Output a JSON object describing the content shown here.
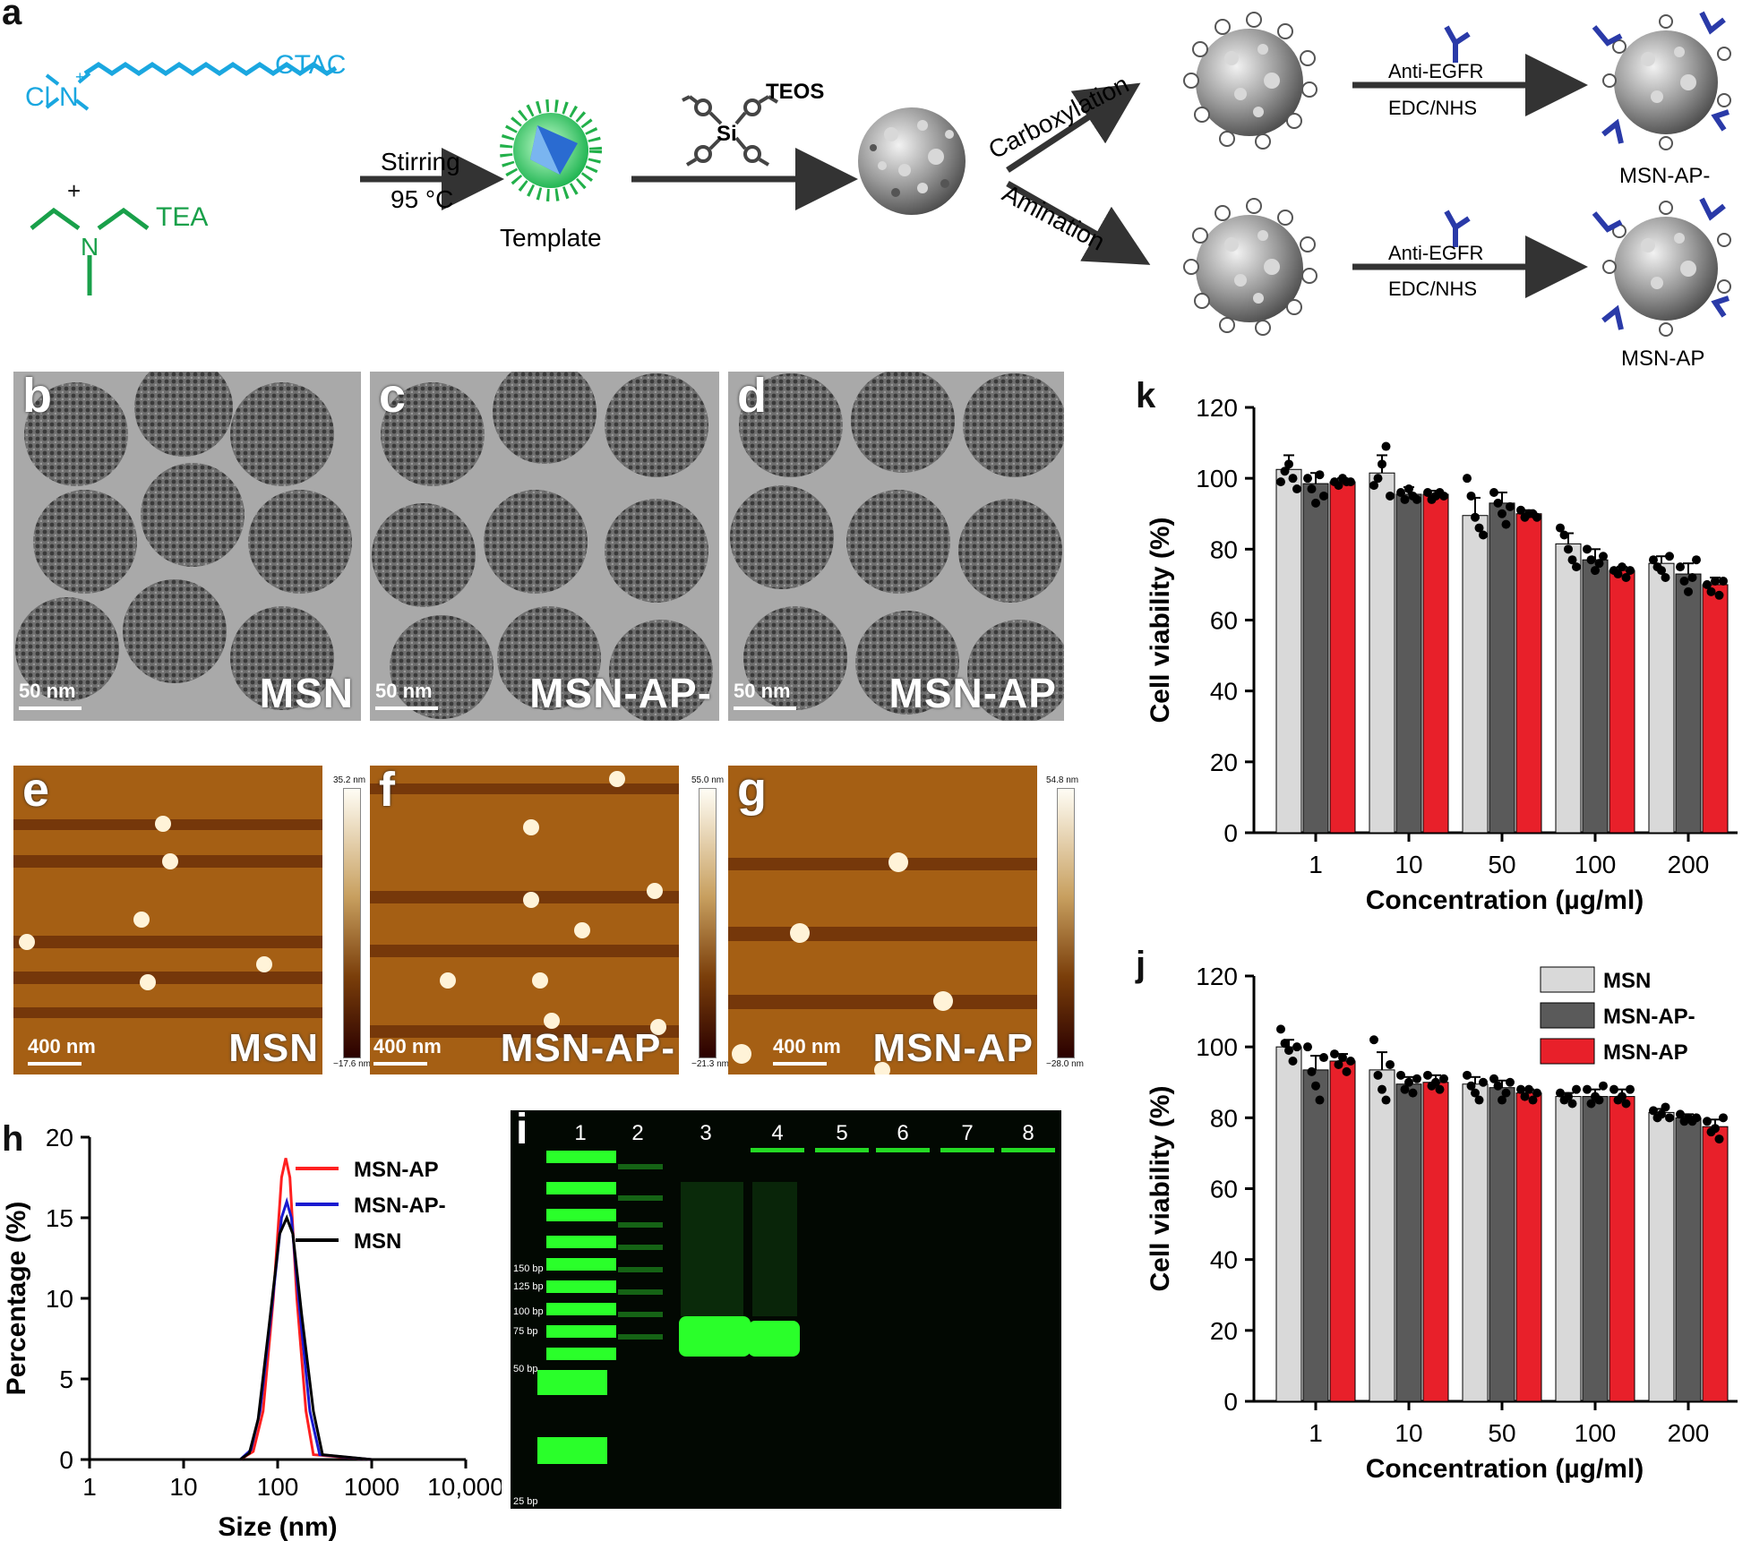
{
  "panel_labels": {
    "a": "a",
    "b": "b",
    "c": "c",
    "d": "d",
    "e": "e",
    "f": "f",
    "g": "g",
    "h": "h",
    "i": "i",
    "j": "j",
    "k": "k"
  },
  "scheme": {
    "ctac": "CTAC",
    "cl": "Cl",
    "n_plus": "N",
    "plus_sign": "+",
    "tea": "TEA",
    "n": "N",
    "stirring": "Stirring",
    "temp": "95 °C",
    "template": "Template",
    "teos": "TEOS",
    "si": "Si",
    "carboxylation": "Carboxylation",
    "amination": "Amination",
    "anti_egfr": "Anti-EGFR",
    "edc_nhs": "EDC/NHS",
    "product_top": "MSN-AP-",
    "product_bottom": "MSN-AP"
  },
  "tem": [
    {
      "label": "MSN",
      "scale": "50 nm"
    },
    {
      "label": "MSN-AP-",
      "scale": "50 nm"
    },
    {
      "label": "MSN-AP",
      "scale": "50 nm"
    }
  ],
  "afm": [
    {
      "label": "MSN",
      "scale": "400 nm",
      "cbar_top": "35.2 nm",
      "cbar_bottom": "−17.6 nm"
    },
    {
      "label": "MSN-AP-",
      "scale": "400 nm",
      "cbar_top": "55.0 nm",
      "cbar_bottom": "−21.3 nm"
    },
    {
      "label": "MSN-AP",
      "scale": "400 nm",
      "cbar_top": "54.8 nm",
      "cbar_bottom": "−28.0 nm"
    }
  ],
  "gel": {
    "lanes": [
      "1",
      "2",
      "3",
      "4",
      "5",
      "6",
      "7",
      "8"
    ],
    "ladder": [
      "150 bp",
      "125 bp",
      "100 bp",
      "75 bp",
      "50 bp",
      "25 bp"
    ],
    "band_color": "#2aff2a"
  },
  "colors": {
    "msn": "#d9d9d9",
    "msn_ap_minus": "#5a5a5a",
    "msn_ap": "#e8202a"
  },
  "chart_data": [
    {
      "panel": "h",
      "type": "line",
      "xlabel": "Size (nm)",
      "ylabel": "Percentage (%)",
      "xscale": "log",
      "xlim": [
        1,
        10000
      ],
      "ylim": [
        0,
        20
      ],
      "xticks": [
        "1",
        "10",
        "100",
        "1000",
        "10,000"
      ],
      "yticks": [
        "0",
        "5",
        "10",
        "15",
        "20"
      ],
      "legend": "top-right",
      "series": [
        {
          "name": "MSN-AP",
          "color": "#ff2020",
          "x": [
            1,
            40,
            55,
            70,
            90,
            110,
            122,
            135,
            160,
            200,
            240,
            1000,
            10000
          ],
          "y": [
            0,
            0,
            0.5,
            3,
            10,
            17.5,
            18.7,
            17.5,
            10,
            3,
            0.3,
            0,
            0
          ]
        },
        {
          "name": "MSN-AP-",
          "color": "#1a1ad0",
          "x": [
            1,
            40,
            52,
            65,
            85,
            110,
            125,
            140,
            170,
            220,
            280,
            1000,
            10000
          ],
          "y": [
            0,
            0,
            0.6,
            3,
            9,
            15,
            16,
            15,
            9.5,
            3,
            0.3,
            0,
            0
          ]
        },
        {
          "name": "MSN",
          "color": "#000000",
          "x": [
            1,
            40,
            50,
            62,
            80,
            105,
            125,
            145,
            180,
            240,
            300,
            1000,
            10000
          ],
          "y": [
            0,
            0,
            0.4,
            2.5,
            8,
            14,
            15,
            14,
            9,
            3,
            0.3,
            0,
            0
          ]
        }
      ]
    },
    {
      "panel": "k",
      "type": "bar",
      "xlabel": "Concentration (µg/ml)",
      "ylabel": "Cell viability (%)",
      "ylim": [
        0,
        120
      ],
      "yticks": [
        "0",
        "20",
        "40",
        "60",
        "80",
        "100",
        "120"
      ],
      "categories": [
        "1",
        "10",
        "50",
        "100",
        "200"
      ],
      "series": [
        {
          "name": "MSN",
          "color": "#d9d9d9",
          "values": [
            102.5,
            101.5,
            89.5,
            81.5,
            76
          ],
          "errors": [
            4,
            5,
            5,
            3,
            2
          ],
          "points": [
            [
              99,
              102,
              104,
              100,
              97
            ],
            [
              98,
              100,
              104,
              109,
              95
            ],
            [
              100,
              95,
              89,
              86,
              84
            ],
            [
              86,
              84,
              80,
              77,
              75
            ],
            [
              77,
              75,
              74,
              72,
              78
            ]
          ]
        },
        {
          "name": "MSN-AP-",
          "color": "#5a5a5a",
          "values": [
            98.5,
            95.5,
            93,
            77,
            73
          ],
          "errors": [
            3,
            2,
            3,
            3,
            3
          ],
          "points": [
            [
              100,
              97,
              93,
              101,
              95
            ],
            [
              96,
              94,
              97,
              95,
              94
            ],
            [
              96,
              93,
              90,
              87,
              92
            ],
            [
              80,
              77,
              74,
              76,
              78
            ],
            [
              75,
              71,
              68,
              72,
              77
            ]
          ]
        },
        {
          "name": "MSN-AP",
          "color": "#e8202a",
          "values": [
            99,
            95.5,
            90,
            74,
            70
          ],
          "errors": [
            1,
            1,
            1,
            1,
            2
          ],
          "points": [
            [
              99,
              98,
              100,
              99,
              99
            ],
            [
              96,
              94,
              95,
              96,
              95
            ],
            [
              91,
              89,
              90,
              90,
              89
            ],
            [
              74,
              73,
              75,
              72,
              74
            ],
            [
              70,
              68,
              71,
              67,
              71
            ]
          ]
        }
      ]
    },
    {
      "panel": "j",
      "type": "bar",
      "xlabel": "Concentration (µg/ml)",
      "ylabel": "Cell viability (%)",
      "ylim": [
        0,
        120
      ],
      "yticks": [
        "0",
        "20",
        "40",
        "60",
        "80",
        "100",
        "120"
      ],
      "categories": [
        "1",
        "10",
        "50",
        "100",
        "200"
      ],
      "legend": "top-right",
      "series": [
        {
          "name": "MSN",
          "color": "#d9d9d9",
          "values": [
            100,
            93.5,
            89.5,
            86,
            81.5
          ],
          "errors": [
            2,
            5,
            2,
            1,
            1
          ],
          "points": [
            [
              105,
              101,
              99,
              96,
              100
            ],
            [
              102,
              92,
              88,
              85,
              95
            ],
            [
              92,
              89,
              87,
              85,
              90
            ],
            [
              87,
              85,
              86,
              84,
              88
            ],
            [
              82,
              80,
              81,
              83,
              80
            ]
          ]
        },
        {
          "name": "MSN-AP-",
          "color": "#5a5a5a",
          "values": [
            93.5,
            89.5,
            88.5,
            86,
            80
          ],
          "errors": [
            4,
            2,
            2,
            2,
            1
          ],
          "points": [
            [
              100,
              93,
              89,
              85,
              97
            ],
            [
              92,
              88,
              90,
              87,
              91
            ],
            [
              91,
              89,
              85,
              87,
              90
            ],
            [
              88,
              84,
              86,
              85,
              89
            ],
            [
              81,
              79,
              80,
              79,
              80
            ]
          ]
        },
        {
          "name": "MSN-AP",
          "color": "#e8202a",
          "values": [
            96,
            90,
            87,
            86,
            77.5
          ],
          "errors": [
            2,
            2,
            1,
            2,
            2
          ],
          "points": [
            [
              98,
              95,
              97,
              93,
              96
            ],
            [
              92,
              89,
              90,
              88,
              91
            ],
            [
              88,
              86,
              88,
              85,
              87
            ],
            [
              88,
              85,
              86,
              84,
              88
            ],
            [
              79,
              76,
              77,
              74,
              80
            ]
          ]
        }
      ]
    }
  ]
}
